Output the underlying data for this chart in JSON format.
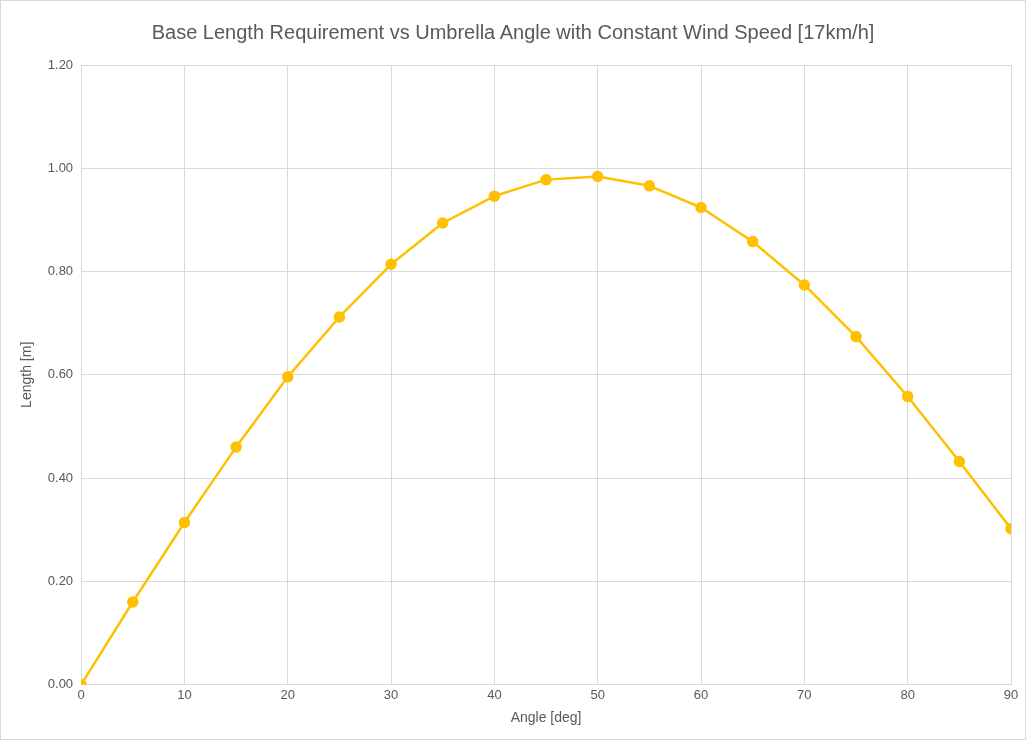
{
  "chart_data": {
    "type": "line",
    "title": "Base Length Requirement vs Umbrella Angle with Constant Wind Speed [17km/h]",
    "xlabel": "Angle [deg]",
    "ylabel": "Length [m]",
    "x": [
      0,
      5,
      10,
      15,
      20,
      25,
      30,
      35,
      40,
      45,
      50,
      55,
      60,
      65,
      70,
      75,
      80,
      85,
      90
    ],
    "series": [
      {
        "color": "#ffc000",
        "values": [
          0,
          0.16,
          0.314,
          0.46,
          0.596,
          0.712,
          0.814,
          0.894,
          0.946,
          0.978,
          0.984,
          0.966,
          0.924,
          0.858,
          0.774,
          0.674,
          0.558,
          0.432,
          0.302
        ]
      }
    ],
    "xlim": [
      0,
      90
    ],
    "xticks": [
      0,
      10,
      20,
      30,
      40,
      50,
      60,
      70,
      80,
      90
    ],
    "ylim": [
      0,
      1.2
    ],
    "yticks": [
      {
        "value": 0,
        "label": "0.00"
      },
      {
        "value": 0.2,
        "label": "0.20"
      },
      {
        "value": 0.4,
        "label": "0.40"
      },
      {
        "value": 0.6,
        "label": "0.60"
      },
      {
        "value": 0.8,
        "label": "0.80"
      },
      {
        "value": 1,
        "label": "1.00"
      },
      {
        "value": 1.2,
        "label": "1.20"
      }
    ],
    "grid": true,
    "legend": false,
    "marker": "circle",
    "line_style": "solid"
  }
}
